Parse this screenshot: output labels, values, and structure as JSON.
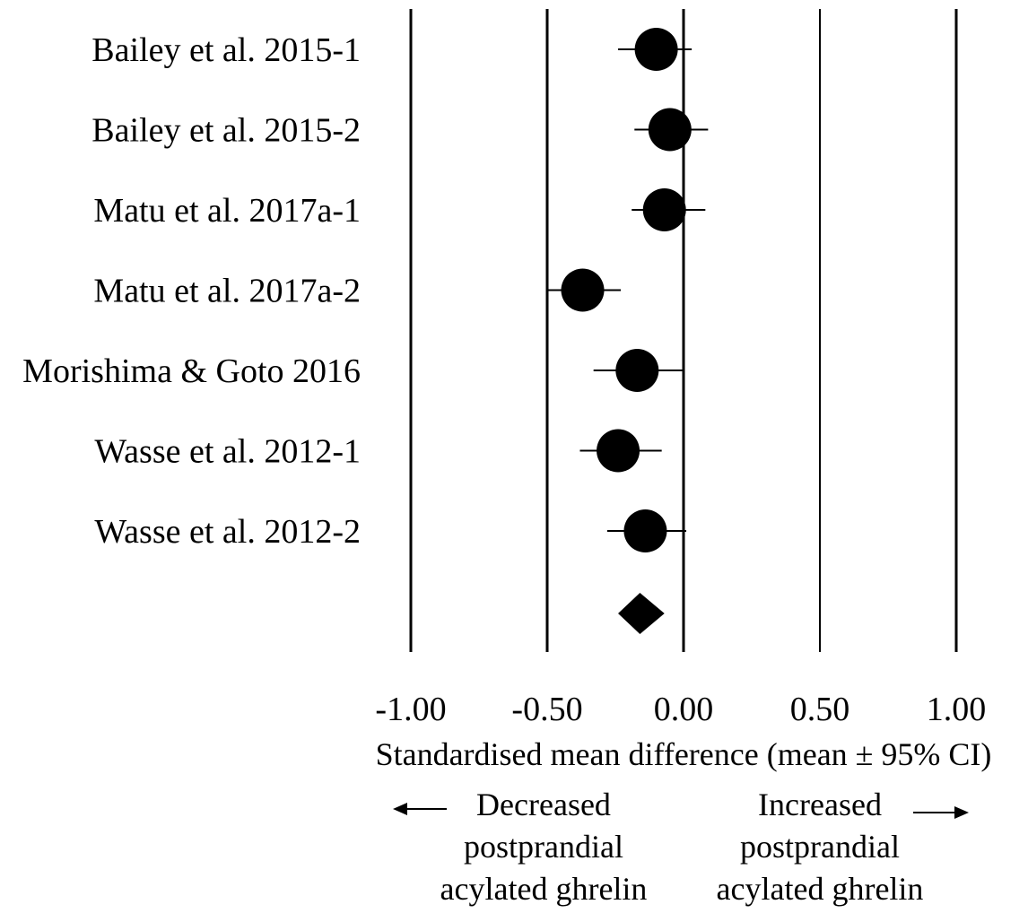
{
  "chart_data": {
    "type": "forest",
    "xlabel": "Standardised mean difference (mean ± 95% CI)",
    "xlim": [
      -1.0,
      1.0
    ],
    "xticks": [
      -1.0,
      -0.5,
      0.0,
      0.5,
      1.0
    ],
    "tick_labels": [
      "-1.00",
      "-0.50",
      "0.00",
      "0.50",
      "1.00"
    ],
    "grid": true,
    "studies": [
      {
        "label": "Bailey et al. 2015-1",
        "mean": -0.1,
        "lower": -0.24,
        "upper": 0.03
      },
      {
        "label": "Bailey et al. 2015-2",
        "mean": -0.05,
        "lower": -0.18,
        "upper": 0.09
      },
      {
        "label": "Matu et al. 2017a-1",
        "mean": -0.07,
        "lower": -0.19,
        "upper": 0.08
      },
      {
        "label": "Matu et al. 2017a-2",
        "mean": -0.37,
        "lower": -0.5,
        "upper": -0.23
      },
      {
        "label": "Morishima & Goto 2016",
        "mean": -0.17,
        "lower": -0.33,
        "upper": 0.0
      },
      {
        "label": "Wasse et al. 2012-1",
        "mean": -0.24,
        "lower": -0.38,
        "upper": -0.08
      },
      {
        "label": "Wasse et al. 2012-2",
        "mean": -0.14,
        "lower": -0.28,
        "upper": 0.01
      }
    ],
    "pooled": {
      "mean": -0.16,
      "lower": -0.24,
      "upper": -0.07
    },
    "direction_left": {
      "lines": [
        "Decreased",
        "postprandial",
        "acylated ghrelin"
      ]
    },
    "direction_right": {
      "lines": [
        "Increased",
        "postprandial",
        "acylated ghrelin"
      ]
    }
  }
}
